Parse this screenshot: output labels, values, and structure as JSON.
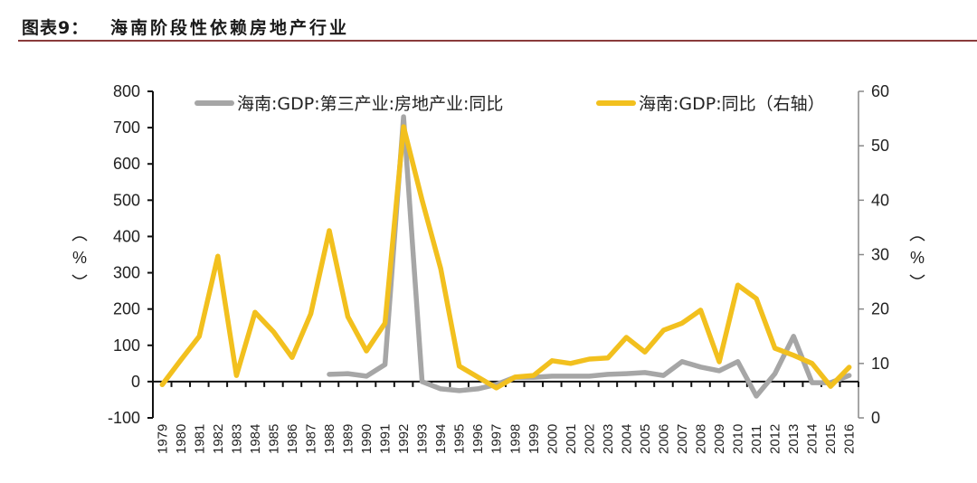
{
  "header": {
    "figure_number": "图表9：",
    "figure_title": "海南阶段性依赖房地产行业",
    "rule_color": "#8a3b3b"
  },
  "chart_data": {
    "type": "line",
    "title": "海南阶段性依赖房地产行业",
    "categories": [
      "1979",
      "1980",
      "1981",
      "1982",
      "1983",
      "1984",
      "1985",
      "1986",
      "1987",
      "1988",
      "1989",
      "1990",
      "1991",
      "1992",
      "1993",
      "1994",
      "1995",
      "1996",
      "1997",
      "1998",
      "1999",
      "2000",
      "2001",
      "2002",
      "2003",
      "2004",
      "2005",
      "2006",
      "2007",
      "2008",
      "2009",
      "2010",
      "2011",
      "2012",
      "2013",
      "2014",
      "2015",
      "2016"
    ],
    "series": [
      {
        "name": "海南:GDP:第三产业:房地产业:同比",
        "axis": "left",
        "color": "#a6a6a6",
        "values": [
          null,
          null,
          null,
          null,
          null,
          null,
          null,
          null,
          null,
          20,
          22,
          15,
          47,
          730,
          0,
          -20,
          -25,
          -20,
          -8,
          12,
          12,
          15,
          15,
          15,
          20,
          22,
          25,
          17,
          55,
          40,
          30,
          55,
          -40,
          22,
          125,
          -3,
          -3,
          17
        ]
      },
      {
        "name": "海南:GDP:同比（右轴）",
        "axis": "right",
        "color": "#f2c01e",
        "values": [
          6.1,
          10.6,
          15.0,
          29.7,
          7.8,
          19.4,
          15.8,
          11.1,
          19.1,
          34.4,
          18.6,
          12.3,
          17.4,
          53.5,
          40.0,
          27.4,
          9.5,
          7.5,
          5.5,
          7.5,
          7.8,
          10.5,
          10.0,
          10.8,
          11.0,
          14.8,
          12.1,
          16.1,
          17.4,
          19.8,
          10.3,
          24.4,
          21.9,
          12.8,
          11.5,
          10.0,
          5.8,
          9.3
        ]
      }
    ],
    "left_axis": {
      "label": "（%）",
      "min": -100,
      "max": 800,
      "step": 100,
      "ticks": [
        "800",
        "700",
        "600",
        "500",
        "400",
        "300",
        "200",
        "100",
        "0",
        "-100"
      ]
    },
    "right_axis": {
      "label": "（%）",
      "min": 0,
      "max": 60,
      "step": 10,
      "ticks": [
        "60",
        "50",
        "40",
        "30",
        "20",
        "10",
        "0"
      ]
    },
    "xlabel": "",
    "legend_position": "top",
    "grid": false
  },
  "legend": [
    {
      "label": "海南:GDP:第三产业:房地产业:同比",
      "color": "#a6a6a6"
    },
    {
      "label": "海南:GDP:同比（右轴）",
      "color": "#f2c01e"
    }
  ],
  "axes": {
    "left_unit": "%",
    "right_unit": "%"
  }
}
